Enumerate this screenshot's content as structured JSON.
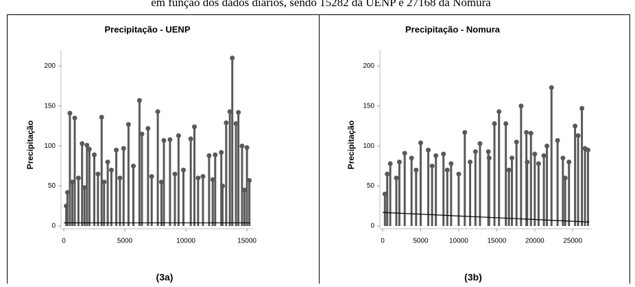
{
  "caption": "em função dos dados diários, sendo 15282 da UENP e 27168 da Nomura",
  "chart_data": [
    {
      "type": "stem",
      "title": "Precipitação - UENP",
      "y_label": "Precipitação",
      "panel_label": "(3a)",
      "color": "#595959",
      "x": [
        200,
        300,
        500,
        700,
        900,
        1200,
        1500,
        1700,
        1900,
        2100,
        2500,
        2800,
        3100,
        3300,
        3600,
        3900,
        4300,
        4600,
        4900,
        5300,
        5700,
        6200,
        6400,
        6900,
        7200,
        7700,
        8000,
        8200,
        8700,
        9100,
        9400,
        9800,
        10400,
        10700,
        11000,
        11400,
        11900,
        12200,
        12400,
        12900,
        13000,
        13300,
        13600,
        13800,
        14100,
        14300,
        14600,
        14800,
        15000,
        15200
      ],
      "values": [
        25,
        42,
        141,
        55,
        135,
        60,
        103,
        48,
        101,
        96,
        89,
        65,
        136,
        55,
        80,
        70,
        95,
        60,
        97,
        127,
        75,
        157,
        115,
        122,
        62,
        143,
        55,
        107,
        108,
        65,
        113,
        70,
        109,
        124,
        60,
        62,
        88,
        58,
        89,
        92,
        50,
        129,
        143,
        210,
        128,
        142,
        100,
        45,
        98,
        57
      ],
      "trendline": {
        "x": [
          0,
          15282
        ],
        "values": [
          4,
          4
        ],
        "color": "#000000"
      },
      "xlim": [
        0,
        15500
      ],
      "ylim": [
        0,
        220
      ],
      "xticks": [
        0,
        5000,
        10000,
        15000
      ],
      "yticks": [
        0,
        50,
        100,
        150,
        200
      ]
    },
    {
      "type": "stem",
      "title": "Precipitação - Nomura",
      "y_label": "Precipitação",
      "panel_label": "(3b)",
      "color": "#595959",
      "x": [
        300,
        600,
        1000,
        1800,
        2200,
        2900,
        3800,
        4400,
        5000,
        6000,
        6500,
        7000,
        8000,
        8500,
        9000,
        10000,
        10800,
        11500,
        12200,
        12800,
        13900,
        14000,
        14700,
        15300,
        16200,
        16600,
        17000,
        17600,
        18200,
        18900,
        19000,
        19500,
        20000,
        20500,
        21200,
        21600,
        22200,
        23000,
        23700,
        24000,
        24500,
        25300,
        25700,
        26200,
        26600,
        27000
      ],
      "values": [
        40,
        65,
        78,
        60,
        80,
        91,
        85,
        70,
        104,
        95,
        75,
        88,
        90,
        70,
        78,
        65,
        117,
        80,
        93,
        103,
        93,
        85,
        128,
        143,
        128,
        70,
        85,
        105,
        150,
        117,
        80,
        116,
        90,
        78,
        88,
        100,
        173,
        107,
        85,
        60,
        80,
        125,
        113,
        147,
        97,
        95
      ],
      "trendline": {
        "x": [
          0,
          27168
        ],
        "values": [
          17,
          5
        ],
        "color": "#000000"
      },
      "xlim": [
        0,
        27500
      ],
      "ylim": [
        0,
        220
      ],
      "xticks": [
        0,
        5000,
        10000,
        15000,
        20000,
        25000
      ],
      "yticks": [
        0,
        50,
        100,
        150,
        200
      ]
    }
  ]
}
